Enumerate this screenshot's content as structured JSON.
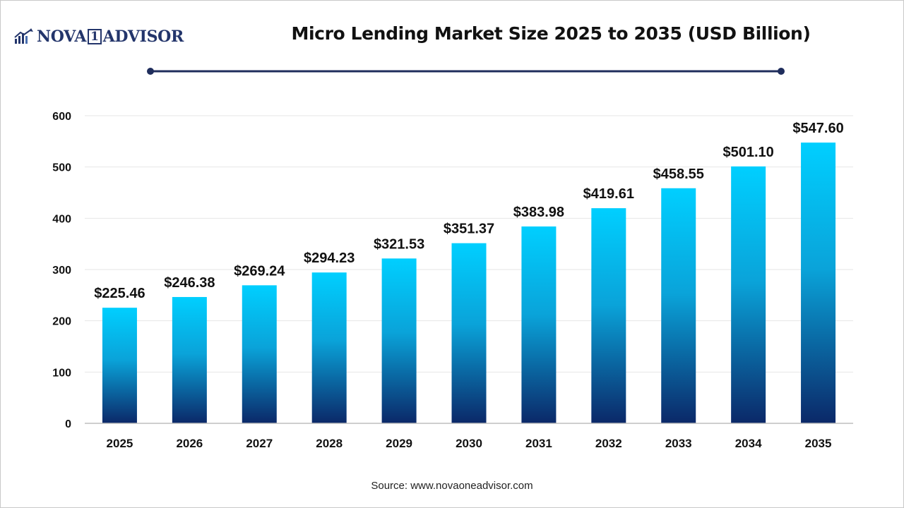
{
  "brand": {
    "logo_left": "NOVA",
    "logo_number": "1",
    "logo_right": "ADVISOR",
    "color": "#23356b"
  },
  "source_text": "Source: www.novaoneadvisor.com",
  "colors": {
    "bar_top": "#00cfff",
    "bar_bottom": "#0b2868",
    "grid": "#e6e6e6",
    "axis": "#bdbdbd",
    "deco_line": "#1f2d5c"
  },
  "chart_data": {
    "type": "bar",
    "title": "Micro Lending Market Size 2025 to 2035 (USD Billion)",
    "xlabel": "",
    "ylabel": "",
    "categories": [
      "2025",
      "2026",
      "2027",
      "2028",
      "2029",
      "2030",
      "2031",
      "2032",
      "2033",
      "2034",
      "2035"
    ],
    "values": [
      225.46,
      246.38,
      269.24,
      294.23,
      321.53,
      351.37,
      383.98,
      419.61,
      458.55,
      501.1,
      547.6
    ],
    "data_labels": [
      "$225.46",
      "$246.38",
      "$269.24",
      "$294.23",
      "$321.53",
      "$351.37",
      "$383.98",
      "$419.61",
      "$458.55",
      "$501.10",
      "$547.60"
    ],
    "ylim": [
      0,
      600
    ],
    "yticks": [
      0,
      100,
      200,
      300,
      400,
      500,
      600
    ],
    "grid": true,
    "legend": "none"
  }
}
